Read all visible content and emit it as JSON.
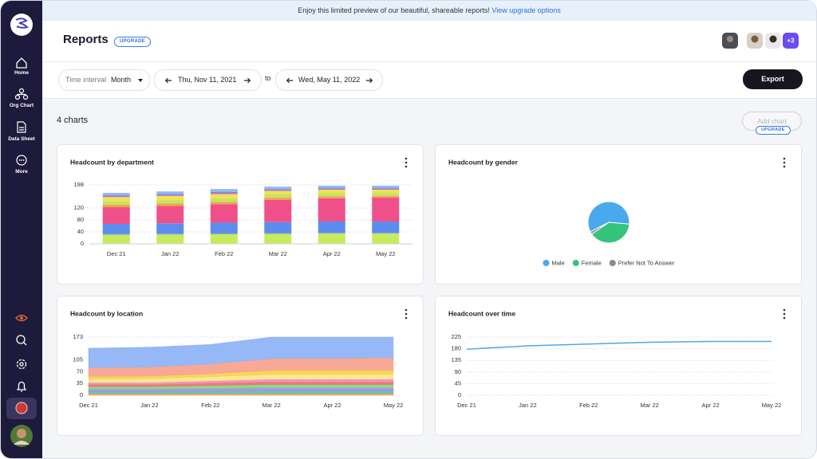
{
  "sidebar": {
    "items": [
      "Home",
      "Org Chart",
      "Data Sheet",
      "More"
    ]
  },
  "banner": {
    "text": "Enjoy this limited preview of our beautiful, shareable reports!",
    "link": "View upgrade options"
  },
  "header": {
    "title": "Reports",
    "badge": "UPGRADE",
    "more_users": "+3"
  },
  "toolbar": {
    "interval_label": "Time interval",
    "interval": "Month",
    "start": "Thu, Nov 11, 2021",
    "to": "to",
    "end": "Wed, May 11, 2022",
    "export": "Export"
  },
  "content": {
    "count": "4 charts",
    "add_chart": "Add chart",
    "add_badge": "UPGRADE"
  },
  "chart_data": [
    {
      "type": "bar",
      "stacked": true,
      "title": "Headcount by department",
      "categories": [
        "Dec 21",
        "Jan 22",
        "Feb 22",
        "Mar 22",
        "Apr 22",
        "May 22"
      ],
      "series": [
        {
          "color": "#c6ec5c",
          "values": [
            30,
            31,
            32,
            33,
            34,
            34
          ]
        },
        {
          "color": "#9aa3b5",
          "values": [
            3,
            3,
            3,
            3,
            3,
            3
          ]
        },
        {
          "color": "#5b8def",
          "values": [
            34,
            35,
            36,
            37,
            38,
            38
          ]
        },
        {
          "color": "#f0508a",
          "values": [
            56,
            58,
            62,
            75,
            78,
            80
          ]
        },
        {
          "color": "#f5a04a",
          "values": [
            8,
            8,
            8,
            7,
            7,
            6
          ]
        },
        {
          "color": "#bde66a",
          "values": [
            12,
            12,
            12,
            11,
            10,
            10
          ]
        },
        {
          "color": "#f5e14a",
          "values": [
            14,
            14,
            14,
            12,
            12,
            11
          ]
        },
        {
          "color": "#9b7be0",
          "values": [
            6,
            6,
            7,
            6,
            5,
            5
          ]
        },
        {
          "color": "#8fb8f0",
          "values": [
            8,
            9,
            10,
            8,
            8,
            8
          ]
        }
      ],
      "ylim": [
        0,
        198
      ],
      "yticks": [
        0,
        40,
        80,
        120,
        198
      ],
      "grid": true
    },
    {
      "type": "pie",
      "title": "Headcount by gender",
      "categories": [
        "Male",
        "Female",
        "Prefer Not To Answer"
      ],
      "values": [
        59,
        39,
        2
      ],
      "colors": [
        "#4aa8ec",
        "#35c47c",
        "#8a8a8a"
      ],
      "legend": "bottom"
    },
    {
      "type": "area",
      "stacked": true,
      "title": "Headcount by location",
      "categories": [
        "Dec 21",
        "Jan 22",
        "Feb 22",
        "Mar 22",
        "Apr 22",
        "May 22"
      ],
      "series": [
        {
          "color": "#f59a4a",
          "values": [
            5,
            5,
            5,
            5,
            5,
            5
          ]
        },
        {
          "color": "#4fc4b0",
          "values": [
            6,
            6,
            7,
            8,
            8,
            8
          ]
        },
        {
          "color": "#a58ae6",
          "values": [
            7,
            7,
            8,
            9,
            9,
            9
          ]
        },
        {
          "color": "#7ed67a",
          "values": [
            8,
            8,
            9,
            10,
            10,
            10
          ]
        },
        {
          "color": "#ef6b6b",
          "values": [
            6,
            6,
            7,
            8,
            8,
            8
          ]
        },
        {
          "color": "#f28ab5",
          "values": [
            6,
            6,
            7,
            8,
            8,
            8
          ]
        },
        {
          "color": "#f7e88a",
          "values": [
            10,
            11,
            12,
            14,
            14,
            14
          ]
        },
        {
          "color": "#f9cf4a",
          "values": [
            8,
            8,
            9,
            12,
            12,
            12
          ]
        },
        {
          "color": "#f7a08a",
          "values": [
            26,
            27,
            29,
            35,
            36,
            37
          ]
        },
        {
          "color": "#8cb0f5",
          "values": [
            58,
            59,
            58,
            64,
            63,
            62
          ]
        }
      ],
      "ylim": [
        0,
        173
      ],
      "yticks": [
        0,
        35,
        70,
        105,
        173
      ],
      "grid": true
    },
    {
      "type": "line",
      "title": "Headcount over time",
      "categories": [
        "Dec 21",
        "Jan 22",
        "Feb 22",
        "Mar 22",
        "Apr 22",
        "May 22"
      ],
      "values": [
        178,
        191,
        198,
        205,
        208,
        208
      ],
      "color": "#4aa8ec",
      "ylim": [
        0,
        225
      ],
      "yticks": [
        0,
        45,
        90,
        135,
        180,
        225
      ],
      "grid": true
    }
  ]
}
